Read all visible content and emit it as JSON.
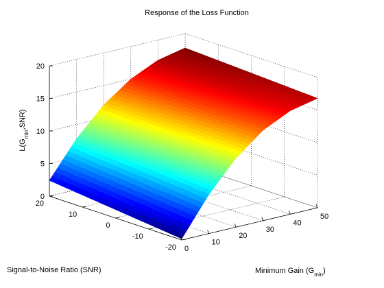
{
  "chart_data": {
    "type": "surface",
    "title": "Response of the Loss Function",
    "xlabel": "Minimum Gain (G",
    "xlabel_sub": "min",
    "xlabel_end": ")",
    "ylabel": "Signal-to-Noise Ratio (SNR)",
    "zlabel": "L(G",
    "zlabel_sub": "min",
    "zlabel_end": ",SNR)",
    "xlim": [
      0,
      50
    ],
    "ylim": [
      -20,
      20
    ],
    "zlim": [
      0,
      20
    ],
    "xticks": [
      "0",
      "10",
      "20",
      "30",
      "40",
      "50"
    ],
    "yticks": [
      "-20",
      "-10",
      "0",
      "10",
      "20"
    ],
    "zticks": [
      "0",
      "5",
      "10",
      "15",
      "20"
    ],
    "grid": true,
    "colormap": "jet",
    "surface_samples": {
      "gmin": [
        0,
        10,
        20,
        30,
        40,
        50
      ],
      "snr": [
        -20,
        -10,
        0,
        10,
        20
      ],
      "loss_at_snr_-20": [
        0.2,
        6.0,
        10.6,
        13.9,
        15.9,
        16.8
      ],
      "loss_at_snr_20": [
        2.4,
        7.8,
        12.0,
        15.0,
        16.9,
        17.8
      ]
    }
  }
}
